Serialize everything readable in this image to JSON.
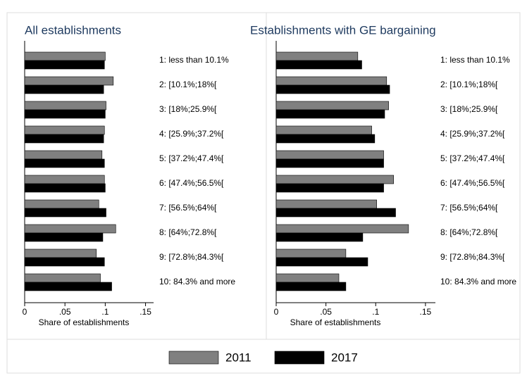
{
  "chart_data": [
    {
      "type": "hbar",
      "title": "All establishments",
      "xlabel": "Share of establishments",
      "categories": [
        "1: less than 10.1%",
        "2: [10.1%;18%[",
        "3: [18%;25.9%[",
        "4: [25.9%;37.2%[",
        "5: [37.2%;47.4%[",
        "6: [47.4%;56.5%[",
        "7: [56.5%;64%[",
        "8: [64%;72.8%[",
        "9: [72.8%;84.3%[",
        "10: 84.3% and more"
      ],
      "series": [
        {
          "name": "2011",
          "color": "#808080",
          "values": [
            0.1,
            0.11,
            0.101,
            0.099,
            0.096,
            0.099,
            0.092,
            0.113,
            0.089,
            0.094
          ]
        },
        {
          "name": "2017",
          "color": "#000000",
          "values": [
            0.099,
            0.098,
            0.1,
            0.098,
            0.099,
            0.1,
            0.101,
            0.097,
            0.099,
            0.108
          ]
        }
      ],
      "xlim": [
        0,
        0.16
      ],
      "xticks": [
        0,
        {
          "value": 0.05,
          "label": ".05"
        },
        {
          "value": 0.1,
          "label": ".1"
        },
        {
          "value": 0.15,
          "label": ".15"
        }
      ]
    },
    {
      "type": "hbar",
      "title": "Establishments with GE bargaining",
      "xlabel": "Share of establishments",
      "categories": [
        "1: less than 10.1%",
        "2: [10.1%;18%[",
        "3: [18%;25.9%[",
        "4: [25.9%;37.2%[",
        "5: [37.2%;47.4%[",
        "6: [47.4%;56.5%[",
        "7: [56.5%;64%[",
        "8: [64%;72.8%[",
        "9: [72.8%;84.3%[",
        "10: 84.3% and more"
      ],
      "series": [
        {
          "color": "#808080",
          "values": [
            0.082,
            0.111,
            0.113,
            0.096,
            0.108,
            0.118,
            0.101,
            0.133,
            0.07,
            0.063
          ]
        },
        {
          "color": "#000000",
          "values": [
            0.086,
            0.114,
            0.109,
            0.099,
            0.108,
            0.108,
            0.12,
            0.087,
            0.092,
            0.07
          ]
        }
      ],
      "xlim": [
        0,
        0.16
      ],
      "xticks": [
        0,
        {
          "value": 0.05,
          "label": ".05"
        },
        {
          "value": 0.1,
          "label": ".1"
        },
        {
          "value": 0.15,
          "label": ".15"
        }
      ]
    }
  ]
}
